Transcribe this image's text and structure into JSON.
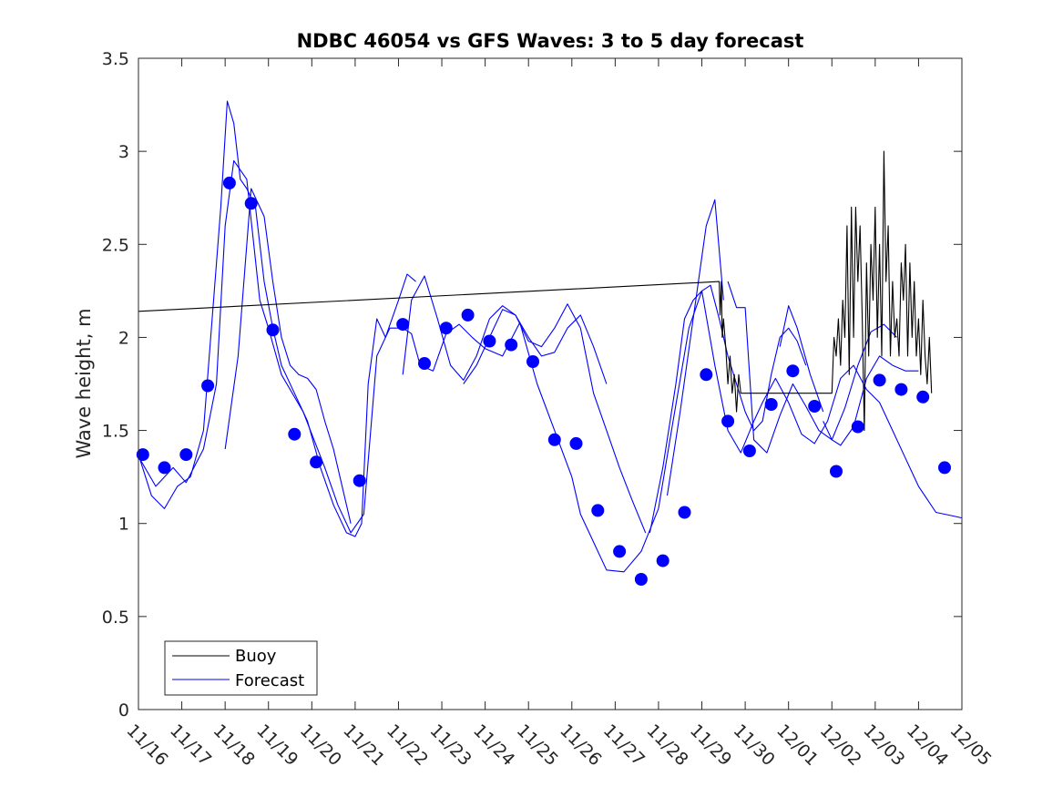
{
  "chart_data": {
    "type": "line",
    "title": "NDBC 46054 vs GFS Waves: 3 to 5 day forecast",
    "xlabel": "",
    "ylabel": "Wave height, m",
    "xlim": [
      0,
      19
    ],
    "ylim": [
      0,
      3.5
    ],
    "x_tick_labels": [
      "11/16",
      "11/17",
      "11/18",
      "11/19",
      "11/20",
      "11/21",
      "11/22",
      "11/23",
      "11/24",
      "11/25",
      "11/26",
      "11/27",
      "11/28",
      "11/29",
      "11/30",
      "12/01",
      "12/02",
      "12/03",
      "12/04",
      "12/05"
    ],
    "y_ticks": [
      0,
      0.5,
      1,
      1.5,
      2,
      2.5,
      3,
      3.5
    ],
    "y_tick_labels": [
      "0",
      "0.5",
      "1",
      "1.5",
      "2",
      "2.5",
      "3",
      "3.5"
    ],
    "legend": {
      "position": "bottom-left",
      "entries": [
        "Buoy",
        "Forecast"
      ]
    },
    "colors": {
      "buoy": "#000000",
      "forecast": "#0000ff",
      "axis": "#262626"
    },
    "series": [
      {
        "name": "Buoy",
        "style": "line",
        "x": [
          -0.05,
          13.4,
          13.42,
          13.45,
          13.47,
          13.5,
          13.55,
          13.6,
          13.65,
          13.7,
          13.75,
          13.8,
          13.85,
          13.9,
          14.0,
          15.5,
          16.0,
          16.05,
          16.1,
          16.15,
          16.2,
          16.25,
          16.3,
          16.35,
          16.4,
          16.45,
          16.5,
          16.55,
          16.6,
          16.65,
          16.7,
          16.75,
          16.8,
          16.85,
          16.9,
          16.95,
          17.0,
          17.05,
          17.1,
          17.15,
          17.2,
          17.25,
          17.3,
          17.35,
          17.4,
          17.45,
          17.5,
          17.55,
          17.6,
          17.65,
          17.7,
          17.75,
          17.8,
          17.85,
          17.9,
          17.95,
          18.0,
          18.05,
          18.1,
          18.15,
          18.2,
          18.25,
          18.3
        ],
        "values": [
          2.14,
          2.3,
          2.12,
          2.3,
          2.0,
          2.1,
          1.95,
          1.75,
          1.9,
          1.7,
          1.8,
          1.6,
          1.8,
          1.7,
          1.7,
          1.7,
          1.7,
          2.0,
          1.9,
          2.1,
          1.85,
          2.2,
          2.0,
          2.6,
          1.8,
          2.7,
          2.0,
          2.7,
          2.3,
          2.6,
          2.1,
          1.5,
          2.4,
          1.9,
          2.5,
          2.2,
          2.7,
          2.0,
          2.5,
          1.9,
          3.0,
          2.3,
          2.6,
          1.9,
          2.3,
          2.0,
          2.1,
          1.9,
          2.4,
          2.2,
          2.5,
          1.9,
          2.4,
          2.0,
          2.3,
          1.9,
          2.1,
          1.8,
          2.2,
          1.9,
          1.75,
          2.0,
          1.7
        ]
      },
      {
        "name": "Forecast",
        "style": "line",
        "x": [
          0.0,
          0.4,
          0.8,
          1.1,
          1.5,
          1.8,
          2.0,
          2.2,
          2.5,
          2.8,
          3.0,
          3.3,
          3.8,
          4.3,
          4.6,
          4.9,
          5.2,
          5.5,
          5.8,
          6.1,
          6.3,
          6.5,
          6.8,
          7.1,
          7.4,
          7.7,
          8.0,
          8.4,
          8.8,
          9.2,
          9.6,
          10.0,
          10.2,
          10.5,
          10.8,
          11.2,
          11.6,
          12.0,
          12.3,
          12.7,
          13.0,
          13.3,
          13.6,
          13.9,
          14.2,
          14.4,
          14.7,
          15.0,
          15.3,
          15.6,
          15.9,
          16.2,
          16.5,
          16.8,
          17.1,
          17.4,
          17.7,
          18.0,
          18.4,
          18.8,
          19.0
        ],
        "values": [
          1.36,
          1.2,
          1.3,
          1.22,
          1.4,
          1.75,
          2.6,
          2.95,
          2.85,
          2.2,
          2.05,
          1.8,
          1.6,
          1.3,
          1.1,
          0.95,
          1.05,
          1.9,
          2.05,
          2.05,
          2.02,
          1.85,
          1.82,
          2.02,
          2.07,
          2.0,
          1.94,
          1.9,
          2.08,
          1.75,
          1.5,
          1.25,
          1.05,
          0.9,
          0.75,
          0.74,
          0.85,
          1.08,
          1.5,
          2.05,
          2.25,
          1.85,
          1.5,
          1.38,
          1.55,
          1.65,
          1.78,
          1.65,
          1.48,
          1.43,
          1.55,
          1.78,
          1.85,
          1.72,
          1.65,
          1.5,
          1.35,
          1.2,
          1.06,
          1.04,
          1.03
        ]
      },
      {
        "name": "Forecast",
        "style": "line",
        "x": [
          0.0,
          0.3,
          0.6,
          0.9,
          1.2,
          1.5,
          1.7,
          1.9,
          2.05,
          2.2,
          2.35,
          2.5,
          2.7,
          2.9,
          3.1,
          3.3,
          3.6,
          3.9,
          4.2,
          4.5,
          4.8,
          5.0,
          5.15,
          5.3,
          5.5,
          5.7,
          6.0,
          6.2,
          6.4
        ],
        "values": [
          1.37,
          1.15,
          1.08,
          1.2,
          1.25,
          1.5,
          2.1,
          2.7,
          3.27,
          3.15,
          2.85,
          2.8,
          2.7,
          2.3,
          2.05,
          1.85,
          1.7,
          1.55,
          1.3,
          1.1,
          0.95,
          0.93,
          1.0,
          1.75,
          2.1,
          2.0,
          2.2,
          2.34,
          2.3
        ]
      },
      {
        "name": "Forecast",
        "style": "line",
        "x": [
          6.1,
          6.3,
          6.6,
          6.9,
          7.2,
          7.5,
          7.8,
          8.1,
          8.4,
          8.7,
          9.0,
          9.3,
          9.6,
          9.9,
          10.2,
          10.5,
          10.8,
          11.1,
          11.4,
          11.7
        ],
        "values": [
          1.8,
          2.2,
          2.33,
          2.1,
          1.85,
          1.77,
          1.9,
          2.1,
          2.17,
          2.12,
          1.98,
          1.95,
          2.05,
          2.18,
          2.05,
          1.7,
          1.5,
          1.3,
          1.12,
          0.95
        ]
      },
      {
        "name": "Forecast",
        "style": "line",
        "x": [
          2.0,
          2.3,
          2.6,
          2.9,
          3.1,
          3.3,
          3.5,
          3.7,
          3.9,
          4.1,
          4.3,
          4.5,
          4.7,
          4.9
        ],
        "values": [
          1.4,
          1.9,
          2.8,
          2.65,
          2.3,
          2.0,
          1.85,
          1.8,
          1.78,
          1.72,
          1.55,
          1.4,
          1.2,
          1.0
        ]
      },
      {
        "name": "Forecast",
        "style": "line",
        "x": [
          7.5,
          7.8,
          8.1,
          8.4,
          8.7,
          9.0,
          9.3,
          9.6,
          9.9,
          10.2,
          10.5,
          10.8
        ],
        "values": [
          1.75,
          1.85,
          2.0,
          2.15,
          2.12,
          2.0,
          1.9,
          1.92,
          2.05,
          2.12,
          1.95,
          1.75
        ]
      },
      {
        "name": "Forecast",
        "style": "line",
        "x": [
          11.8,
          12.1,
          12.4,
          12.6,
          12.8,
          13.0,
          13.2,
          13.4,
          13.6,
          13.8,
          14.0,
          14.2,
          14.4,
          14.6,
          14.8,
          15.0,
          15.2,
          15.4
        ],
        "values": [
          0.95,
          1.3,
          1.75,
          2.1,
          2.2,
          2.25,
          2.28,
          2.1,
          1.9,
          1.75,
          1.6,
          1.5,
          1.55,
          1.8,
          2.0,
          2.05,
          1.98,
          1.85
        ]
      },
      {
        "name": "Forecast",
        "style": "line",
        "x": [
          12.2,
          12.5,
          12.8,
          13.1,
          13.3,
          13.5
        ],
        "values": [
          1.15,
          1.6,
          2.1,
          2.6,
          2.74,
          2.2
        ]
      },
      {
        "name": "Forecast",
        "style": "line",
        "x": [
          13.6,
          13.8,
          14.0,
          14.2,
          14.5,
          14.8,
          15.1,
          15.4,
          15.7,
          16.0,
          16.3,
          16.6,
          16.9,
          17.2,
          17.5
        ],
        "values": [
          2.3,
          2.16,
          2.16,
          1.45,
          1.38,
          1.58,
          1.75,
          1.63,
          1.5,
          1.45,
          1.62,
          1.85,
          2.03,
          2.07,
          2.0
        ]
      },
      {
        "name": "Forecast",
        "style": "line",
        "x": [
          15.8,
          16.0,
          16.2,
          16.5,
          16.8,
          17.1,
          17.4,
          17.7,
          18.0
        ],
        "values": [
          1.55,
          1.45,
          1.42,
          1.52,
          1.78,
          1.9,
          1.85,
          1.82,
          1.82
        ]
      },
      {
        "name": "Forecast",
        "style": "line",
        "x": [
          14.8,
          15.0,
          15.2,
          15.5,
          15.8
        ],
        "values": [
          1.95,
          2.17,
          2.05,
          1.8,
          1.6
        ]
      },
      {
        "name": "Forecast",
        "style": "points",
        "x": [
          0.1,
          0.6,
          1.1,
          1.6,
          2.1,
          2.6,
          3.1,
          3.6,
          4.1,
          5.1,
          6.1,
          6.6,
          7.1,
          7.6,
          8.1,
          8.6,
          9.1,
          9.6,
          10.1,
          10.6,
          11.1,
          11.6,
          12.1,
          12.6,
          13.1,
          13.6,
          14.1,
          14.6,
          15.1,
          15.6,
          16.1,
          16.6,
          17.1,
          17.6,
          18.1,
          18.6
        ],
        "values": [
          1.37,
          1.3,
          1.37,
          1.74,
          2.83,
          2.72,
          2.04,
          1.48,
          1.33,
          1.23,
          2.07,
          1.86,
          2.05,
          2.12,
          1.98,
          1.96,
          1.87,
          1.45,
          1.43,
          1.07,
          0.85,
          0.7,
          0.8,
          1.06,
          1.8,
          1.55,
          1.39,
          1.64,
          1.82,
          1.63,
          1.28,
          1.52,
          1.77,
          1.72,
          1.68,
          1.3
        ]
      }
    ]
  }
}
